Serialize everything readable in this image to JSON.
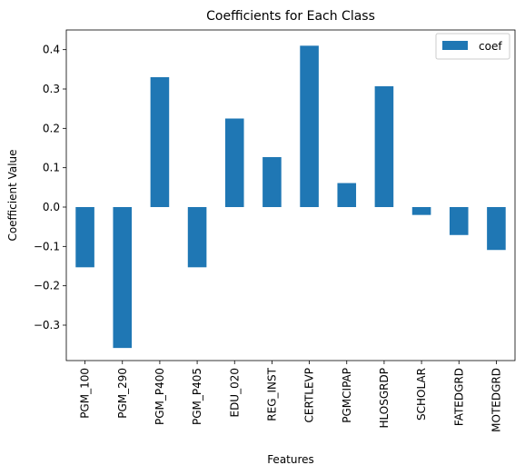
{
  "chart_data": {
    "type": "bar",
    "title": "Coefficients for Each Class",
    "xlabel": "Features",
    "ylabel": "Coefficient Value",
    "categories": [
      "PGM_100",
      "PGM_290",
      "PGM_P400",
      "PGM_P405",
      "EDU_020",
      "REG_INST",
      "CERTLEVP",
      "PGMCIPAP",
      "HLOSGRDP",
      "SCHOLAR",
      "FATEDGRD",
      "MOTEDGRD"
    ],
    "series": [
      {
        "name": "coef",
        "values": [
          -0.153,
          -0.358,
          0.33,
          -0.153,
          0.225,
          0.127,
          0.41,
          0.061,
          0.307,
          -0.02,
          -0.071,
          -0.109
        ],
        "color": "#1f77b4"
      }
    ],
    "ylim": [
      -0.39,
      0.45
    ],
    "yticks": [
      -0.3,
      -0.2,
      -0.1,
      0.0,
      0.1,
      0.2,
      0.3,
      0.4
    ],
    "ytick_labels": [
      "−0.3",
      "−0.2",
      "−0.1",
      "0.0",
      "0.1",
      "0.2",
      "0.3",
      "0.4"
    ],
    "grid": false,
    "legend": "top-right"
  }
}
